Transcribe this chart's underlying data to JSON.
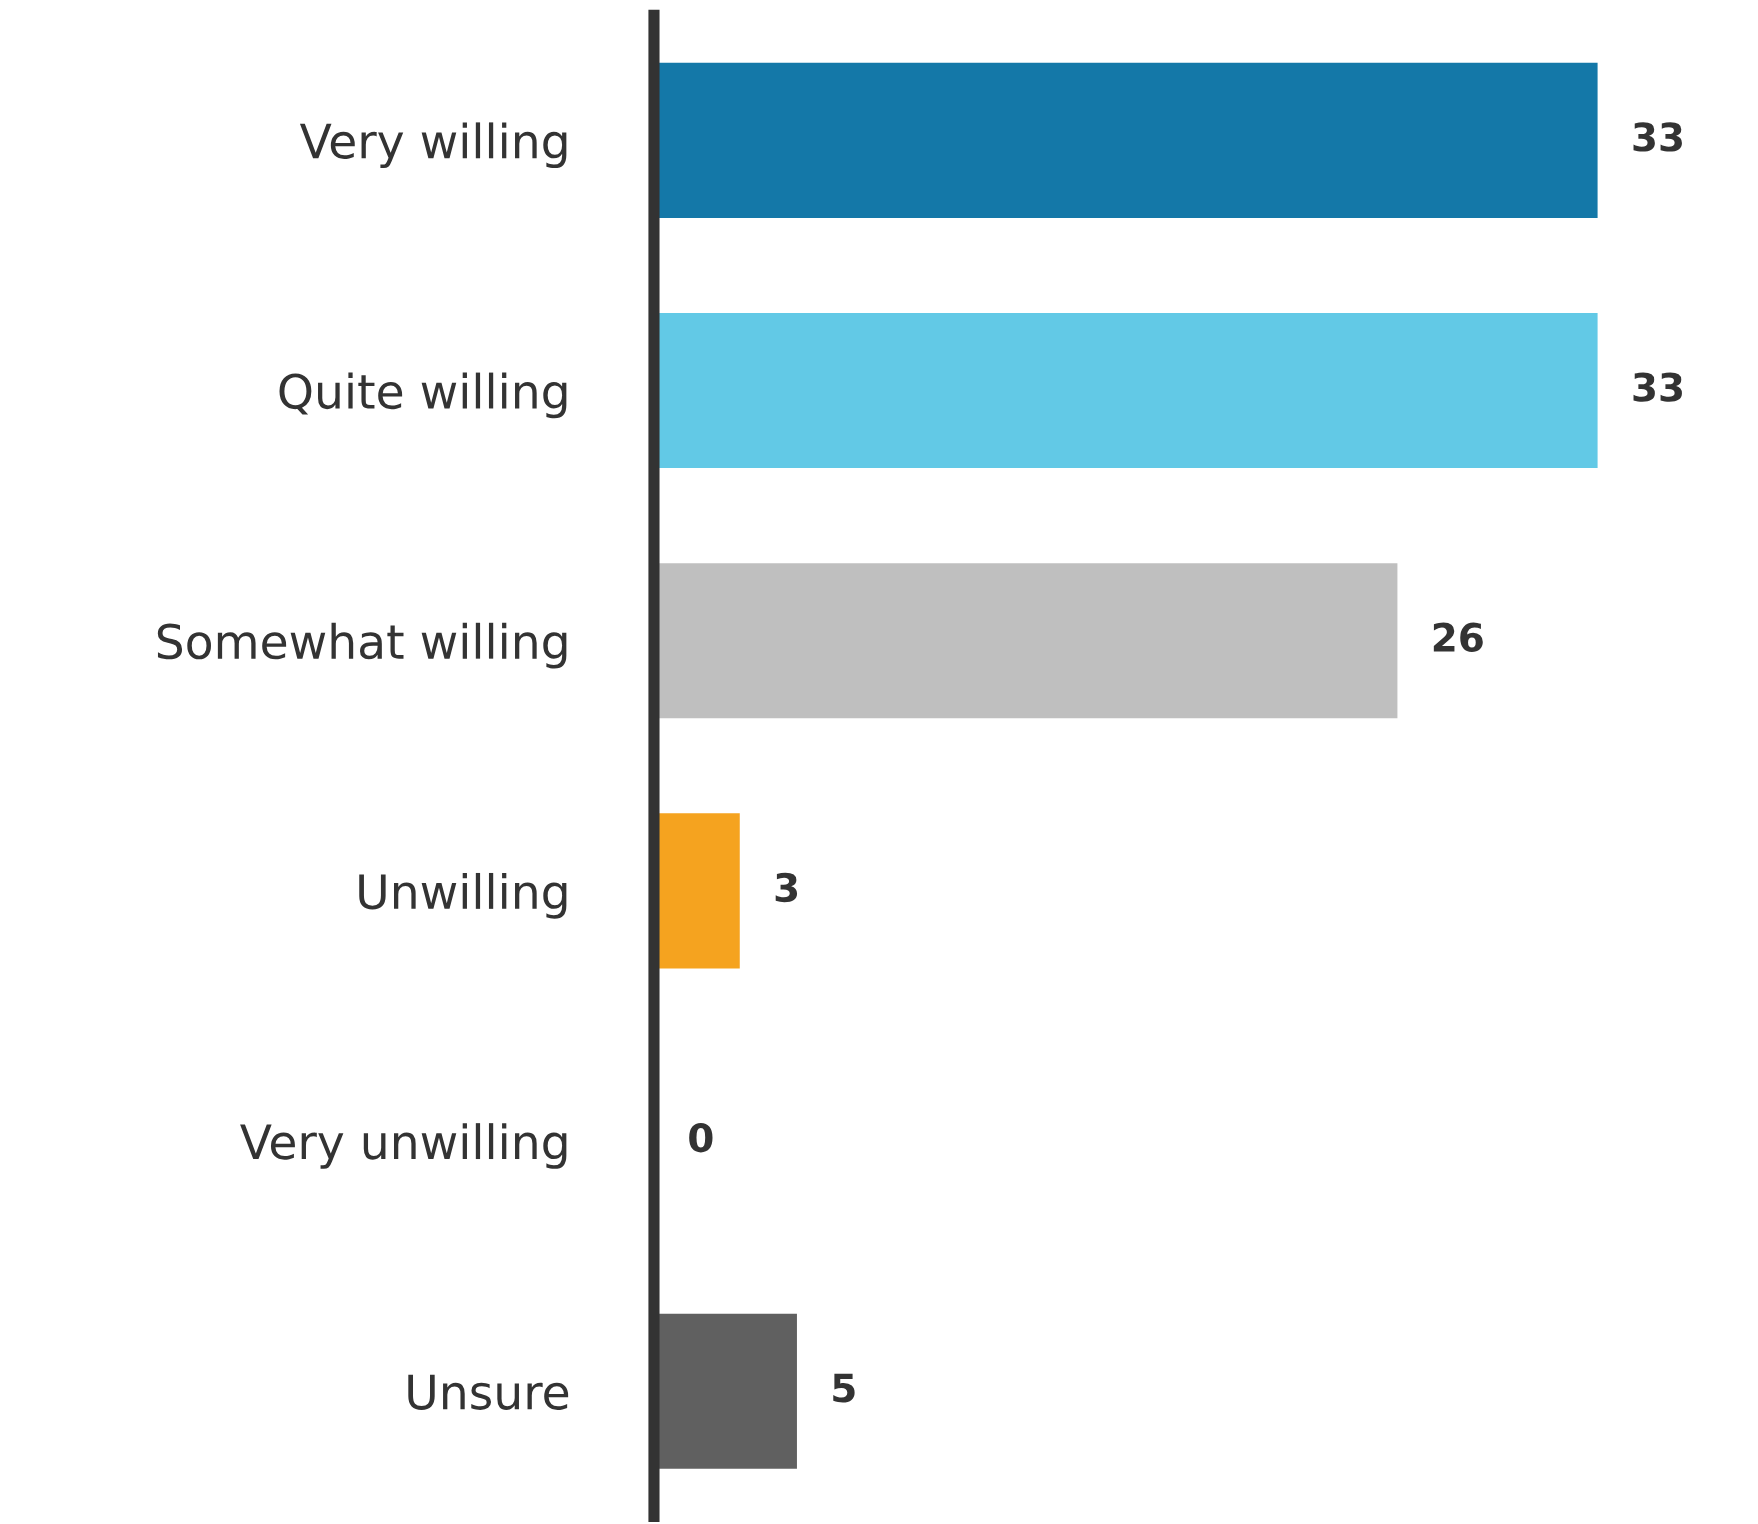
{
  "chart_data": {
    "type": "bar",
    "orientation": "horizontal",
    "categories": [
      "Very willing",
      "Quite willing",
      "Somewhat willing",
      "Unwilling",
      "Very unwilling",
      "Unsure"
    ],
    "values": [
      33,
      33,
      26,
      3,
      0,
      5
    ],
    "colors": [
      "#1478a8",
      "#62c9e6",
      "#bfbfbf",
      "#f5a31f",
      "#f5a31f",
      "#606060"
    ],
    "data_labels": true,
    "grid": false,
    "legend": false,
    "tick_labels": "y"
  }
}
